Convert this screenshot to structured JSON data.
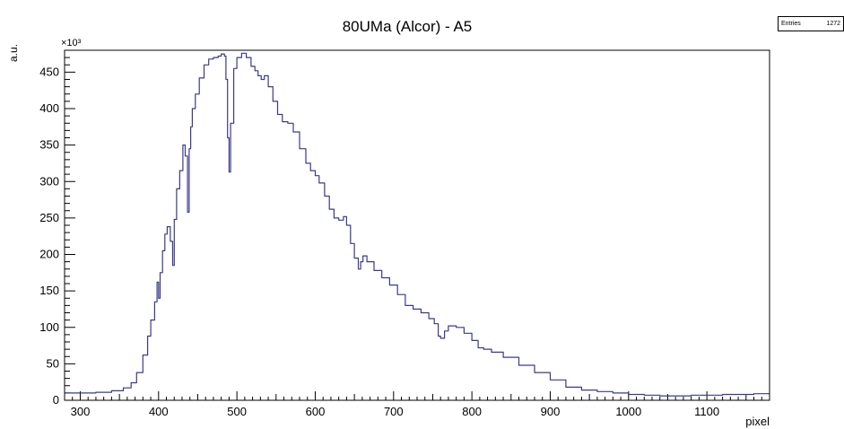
{
  "chart_data": {
    "type": "line",
    "title": "80UMa (Alcor) - A5",
    "xlabel": "pixel",
    "ylabel": "a.u.",
    "y_multiplier": "×10³",
    "xlim": [
      280,
      1180
    ],
    "ylim": [
      0,
      480
    ],
    "xticks": [
      300,
      400,
      500,
      600,
      700,
      800,
      900,
      1000,
      1100
    ],
    "yticks": [
      0,
      50,
      100,
      150,
      200,
      250,
      300,
      350,
      400,
      450
    ],
    "grid": false,
    "line_color": "#3a3a8c",
    "series": [
      {
        "x": [
          280,
          300,
          320,
          340,
          355,
          365,
          372,
          380,
          386,
          390,
          395,
          398,
          400,
          402,
          405,
          408,
          411,
          415,
          418,
          420,
          423,
          427,
          431,
          434,
          437,
          439,
          441,
          443,
          447,
          452,
          458,
          464,
          470,
          476,
          480,
          484,
          486,
          488,
          490,
          492,
          496,
          500,
          506,
          512,
          518,
          523,
          527,
          531,
          535,
          540,
          546,
          552,
          558,
          565,
          572,
          580,
          588,
          594,
          600,
          605,
          612,
          618,
          624,
          630,
          636,
          640,
          645,
          650,
          655,
          658,
          661,
          666,
          675,
          685,
          695,
          705,
          715,
          725,
          735,
          745,
          752,
          757,
          760,
          765,
          770,
          780,
          790,
          800,
          808,
          815,
          825,
          840,
          860,
          880,
          900,
          920,
          940,
          960,
          980,
          1000,
          1020,
          1040,
          1060,
          1080,
          1100,
          1120,
          1140,
          1160,
          1180
        ],
        "y": [
          10,
          10,
          11,
          13,
          17,
          24,
          38,
          62,
          88,
          110,
          135,
          162,
          140,
          175,
          205,
          228,
          238,
          218,
          185,
          248,
          290,
          315,
          350,
          335,
          258,
          345,
          375,
          400,
          420,
          442,
          460,
          468,
          470,
          472,
          475,
          472,
          440,
          360,
          313,
          380,
          455,
          470,
          476,
          470,
          458,
          452,
          445,
          440,
          445,
          430,
          410,
          392,
          382,
          380,
          368,
          345,
          325,
          315,
          308,
          298,
          280,
          262,
          250,
          247,
          252,
          240,
          215,
          195,
          180,
          190,
          198,
          190,
          178,
          168,
          158,
          145,
          130,
          125,
          120,
          112,
          105,
          88,
          85,
          95,
          102,
          100,
          92,
          82,
          72,
          70,
          66,
          59,
          48,
          38,
          28,
          18,
          14,
          12,
          10,
          8,
          7,
          6,
          6,
          7,
          7,
          8,
          8,
          9,
          9
        ]
      }
    ]
  },
  "stats": {
    "label": "Entries",
    "value": "1272"
  }
}
